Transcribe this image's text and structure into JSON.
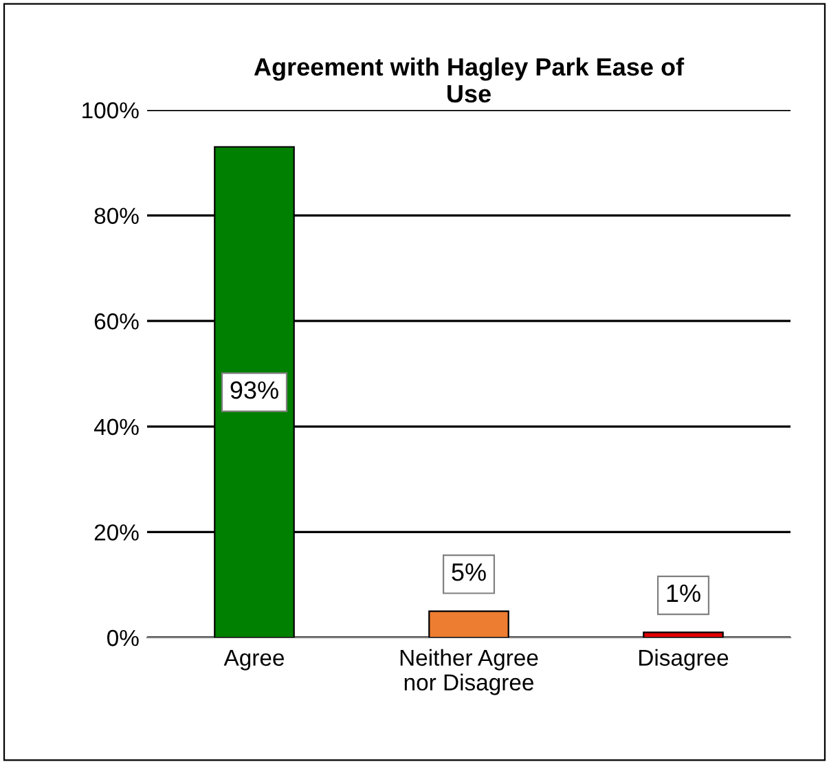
{
  "chart_data": {
    "type": "bar",
    "title": "Agreement with Hagley Park Ease of\nUse",
    "categories": [
      "Agree",
      "Neither Agree\nnor Disagree",
      "Disagree"
    ],
    "values": [
      93,
      5,
      1
    ],
    "colors": [
      "#008000",
      "#ed7d31",
      "#e00000"
    ],
    "value_labels": [
      "93%",
      "5%",
      "1%"
    ],
    "ylim": [
      0,
      100
    ],
    "yticks": [
      {
        "value": 0,
        "label": "0%"
      },
      {
        "value": 20,
        "label": "20%"
      },
      {
        "value": 40,
        "label": "40%"
      },
      {
        "value": 60,
        "label": "60%"
      },
      {
        "value": 80,
        "label": "80%"
      },
      {
        "value": 100,
        "label": "100%"
      }
    ],
    "grid": "y",
    "legend": false
  }
}
